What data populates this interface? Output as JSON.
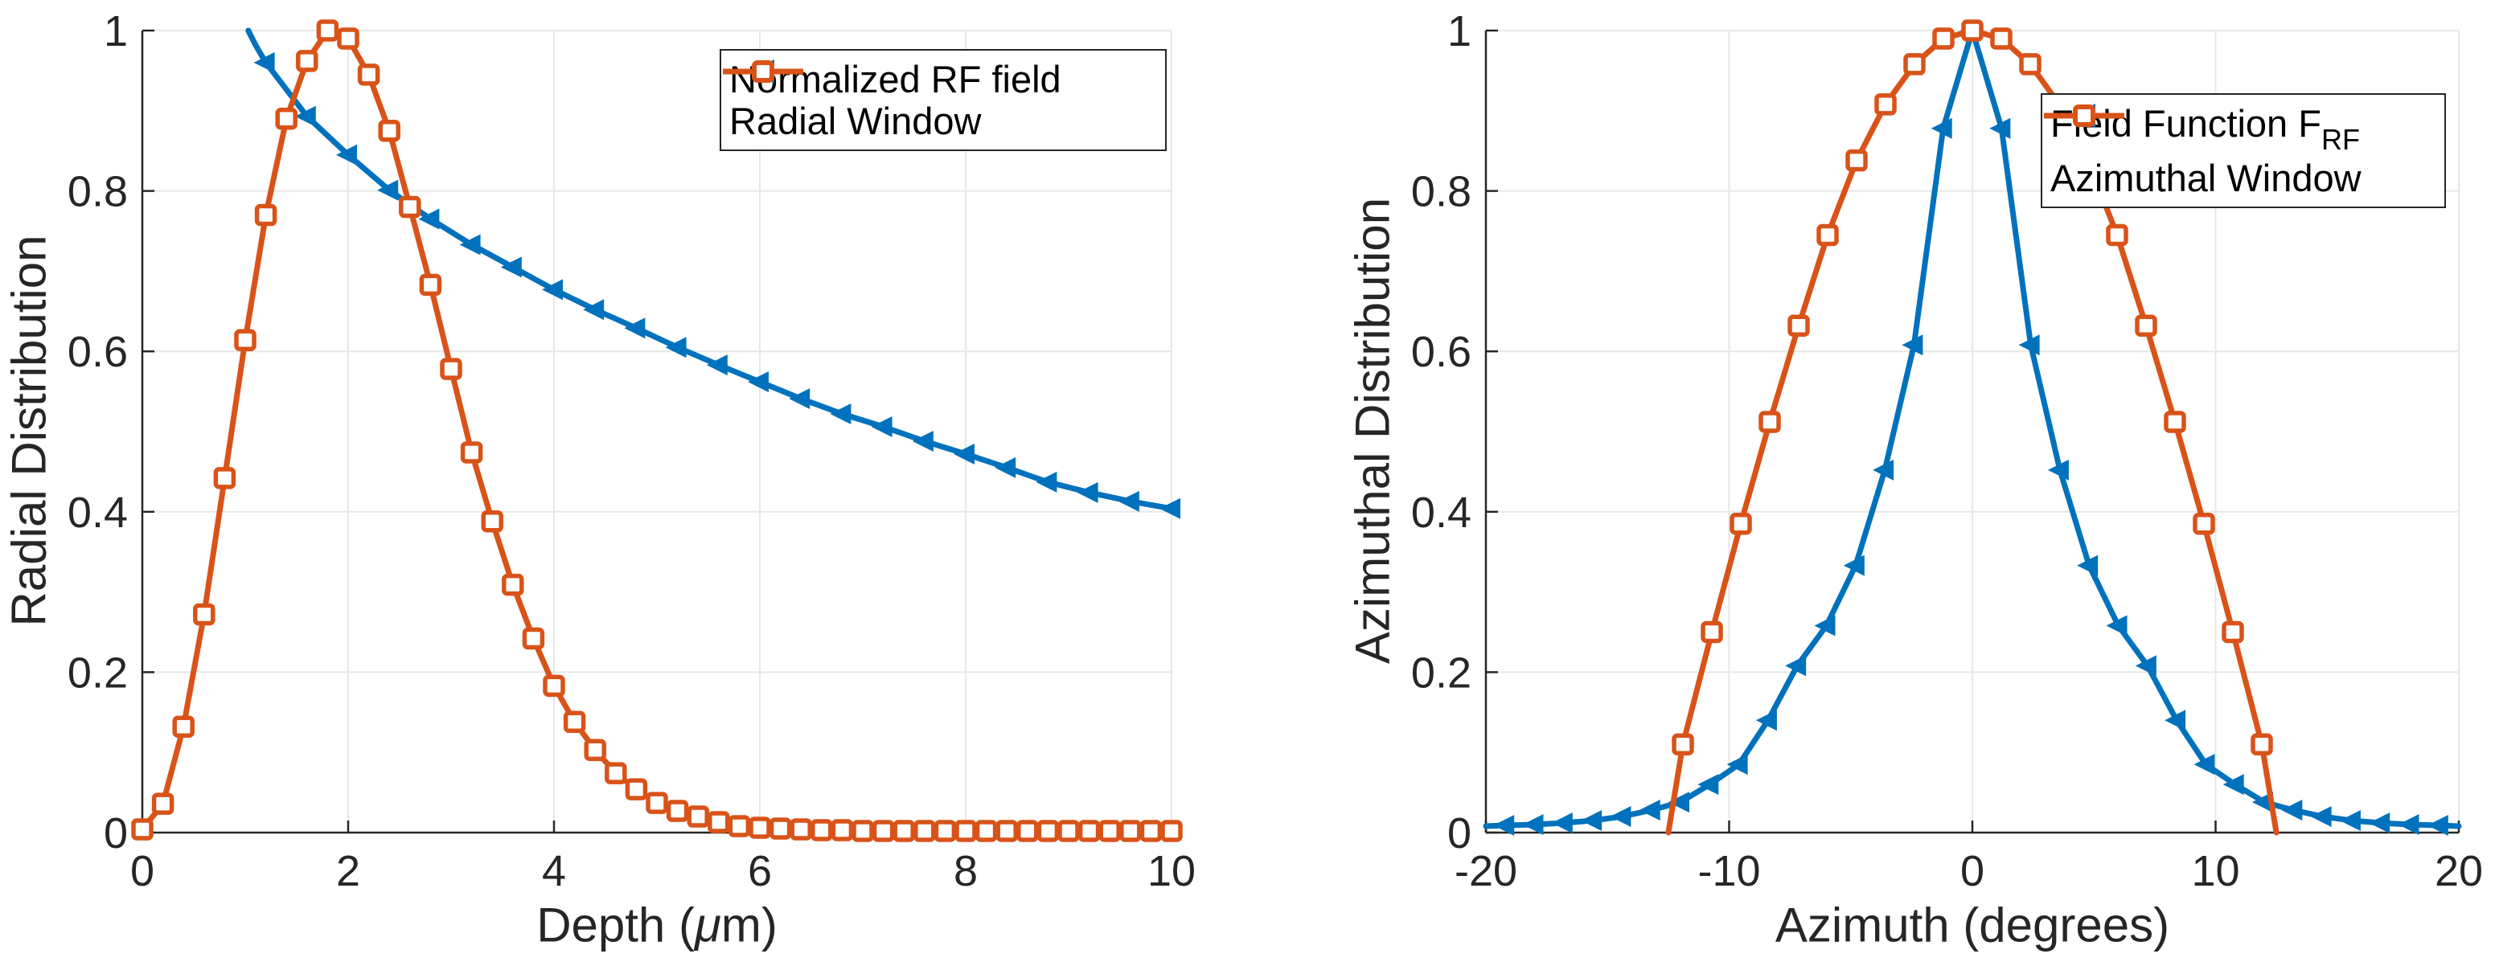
{
  "figure": {
    "background": "#ffffff",
    "axis_color": "#262626",
    "grid_color": "#e7e7e7",
    "series_colors": {
      "blue": "#0072BD",
      "orange": "#D95319"
    }
  },
  "chart_data": [
    {
      "type": "line",
      "title": "",
      "xlabel": "Depth (μm)",
      "xlabel_parts": {
        "pre": "Depth (",
        "mu": "μ",
        "post": "m)"
      },
      "ylabel": "Radial Distribution",
      "xlim": [
        0,
        10
      ],
      "ylim": [
        0,
        1
      ],
      "xticks": [
        0,
        2,
        4,
        6,
        8,
        10
      ],
      "xtick_labels": [
        "0",
        "2",
        "4",
        "6",
        "8",
        "10"
      ],
      "yticks": [
        0,
        0.2,
        0.4,
        0.6,
        0.8,
        1
      ],
      "ytick_labels": [
        "0",
        "0.2",
        "0.4",
        "0.6",
        "0.8",
        "1"
      ],
      "grid": true,
      "legend_position": "top-right-inside",
      "series": [
        {
          "name": "Normalized RF field",
          "color": "#0072BD",
          "marker": "triangle-left",
          "marker_start": 2,
          "marker_end": 25,
          "points": [
            [
              1.03,
              1.0
            ],
            [
              1.1,
              0.982
            ],
            [
              1.2,
              0.96
            ],
            [
              1.6,
              0.893
            ],
            [
              2.0,
              0.845
            ],
            [
              2.4,
              0.801
            ],
            [
              2.8,
              0.765
            ],
            [
              3.2,
              0.733
            ],
            [
              3.6,
              0.705
            ],
            [
              4.0,
              0.677
            ],
            [
              4.4,
              0.652
            ],
            [
              4.8,
              0.629
            ],
            [
              5.2,
              0.605
            ],
            [
              5.6,
              0.583
            ],
            [
              6.0,
              0.562
            ],
            [
              6.4,
              0.541
            ],
            [
              6.8,
              0.522
            ],
            [
              7.2,
              0.506
            ],
            [
              7.6,
              0.488
            ],
            [
              8.0,
              0.472
            ],
            [
              8.4,
              0.455
            ],
            [
              8.8,
              0.437
            ],
            [
              9.2,
              0.424
            ],
            [
              9.6,
              0.413
            ],
            [
              10.0,
              0.404
            ]
          ]
        },
        {
          "name": "Radial Window",
          "color": "#D95319",
          "marker": "square",
          "marker_start": 0,
          "marker_end": 51,
          "points": [
            [
              0,
              0.004
            ],
            [
              0.2,
              0.036
            ],
            [
              0.4,
              0.132
            ],
            [
              0.6,
              0.272
            ],
            [
              0.8,
              0.442
            ],
            [
              1.0,
              0.614
            ],
            [
              1.2,
              0.77
            ],
            [
              1.4,
              0.89
            ],
            [
              1.6,
              0.962
            ],
            [
              1.8,
              1.0
            ],
            [
              2.0,
              0.99
            ],
            [
              2.2,
              0.945
            ],
            [
              2.4,
              0.875
            ],
            [
              2.6,
              0.78
            ],
            [
              2.8,
              0.683
            ],
            [
              3.0,
              0.578
            ],
            [
              3.2,
              0.474
            ],
            [
              3.4,
              0.388
            ],
            [
              3.6,
              0.309
            ],
            [
              3.8,
              0.242
            ],
            [
              4.0,
              0.183
            ],
            [
              4.2,
              0.138
            ],
            [
              4.4,
              0.103
            ],
            [
              4.6,
              0.074
            ],
            [
              4.8,
              0.054
            ],
            [
              5.0,
              0.037
            ],
            [
              5.2,
              0.027
            ],
            [
              5.4,
              0.02
            ],
            [
              5.6,
              0.013
            ],
            [
              5.8,
              0.008
            ],
            [
              6.0,
              0.006
            ],
            [
              6.2,
              0.005
            ],
            [
              6.4,
              0.004
            ],
            [
              6.6,
              0.003
            ],
            [
              6.8,
              0.003
            ],
            [
              7.0,
              0.002
            ],
            [
              7.2,
              0.002
            ],
            [
              7.4,
              0.002
            ],
            [
              7.6,
              0.002
            ],
            [
              7.8,
              0.002
            ],
            [
              8.0,
              0.002
            ],
            [
              8.2,
              0.002
            ],
            [
              8.4,
              0.002
            ],
            [
              8.6,
              0.002
            ],
            [
              8.8,
              0.002
            ],
            [
              9.0,
              0.002
            ],
            [
              9.2,
              0.002
            ],
            [
              9.4,
              0.002
            ],
            [
              9.6,
              0.002
            ],
            [
              9.8,
              0.002
            ],
            [
              10.0,
              0.002
            ]
          ]
        }
      ]
    },
    {
      "type": "line",
      "title": "",
      "xlabel": "Azimuth (degrees)",
      "ylabel": "Azimuthal Distribution",
      "xlim": [
        -20,
        20
      ],
      "ylim": [
        0,
        1
      ],
      "xticks": [
        -20,
        -10,
        0,
        10,
        20
      ],
      "xtick_labels": [
        "-20",
        "-10",
        "0",
        "10",
        "20"
      ],
      "yticks": [
        0,
        0.2,
        0.4,
        0.6,
        0.8,
        1
      ],
      "ytick_labels": [
        "0",
        "0.2",
        "0.4",
        "0.6",
        "0.8",
        "1"
      ],
      "grid": true,
      "legend_position": "top-right-inside",
      "series": [
        {
          "name": "Field Function F_RF",
          "name_main": "Field Function F",
          "name_sub": "RF",
          "color": "#0072BD",
          "marker": "triangle-left",
          "marker_start": 1,
          "marker_end": 34,
          "points": [
            [
              -20,
              0.008
            ],
            [
              -19.2,
              0.009
            ],
            [
              -18,
              0.01
            ],
            [
              -16.8,
              0.012
            ],
            [
              -15.6,
              0.015
            ],
            [
              -14.4,
              0.02
            ],
            [
              -13.2,
              0.028
            ],
            [
              -12,
              0.038
            ],
            [
              -10.8,
              0.06
            ],
            [
              -9.6,
              0.085
            ],
            [
              -8.4,
              0.14
            ],
            [
              -7.2,
              0.208
            ],
            [
              -6,
              0.258
            ],
            [
              -4.8,
              0.333
            ],
            [
              -3.6,
              0.452
            ],
            [
              -2.4,
              0.608
            ],
            [
              -1.2,
              0.878
            ],
            [
              0,
              1.0
            ],
            [
              1.2,
              0.878
            ],
            [
              2.4,
              0.608
            ],
            [
              3.6,
              0.452
            ],
            [
              4.8,
              0.333
            ],
            [
              6,
              0.258
            ],
            [
              7.2,
              0.208
            ],
            [
              8.4,
              0.14
            ],
            [
              9.6,
              0.085
            ],
            [
              10.8,
              0.06
            ],
            [
              12,
              0.038
            ],
            [
              13.2,
              0.028
            ],
            [
              14.4,
              0.02
            ],
            [
              15.6,
              0.015
            ],
            [
              16.8,
              0.012
            ],
            [
              18,
              0.01
            ],
            [
              19.2,
              0.009
            ],
            [
              20,
              0.008
            ]
          ]
        },
        {
          "name": "Azimuthal Window",
          "color": "#D95319",
          "marker": "square",
          "marker_start": 1,
          "marker_end": 22,
          "points": [
            [
              -12.5,
              0
            ],
            [
              -11.9,
              0.11
            ],
            [
              -10.71,
              0.25
            ],
            [
              -9.52,
              0.385
            ],
            [
              -8.33,
              0.512
            ],
            [
              -7.14,
              0.632
            ],
            [
              -5.95,
              0.745
            ],
            [
              -4.76,
              0.838
            ],
            [
              -3.57,
              0.908
            ],
            [
              -2.38,
              0.958
            ],
            [
              -1.19,
              0.99
            ],
            [
              0,
              1.0
            ],
            [
              1.19,
              0.99
            ],
            [
              2.38,
              0.958
            ],
            [
              3.57,
              0.908
            ],
            [
              4.76,
              0.838
            ],
            [
              5.95,
              0.745
            ],
            [
              7.14,
              0.632
            ],
            [
              8.33,
              0.512
            ],
            [
              9.52,
              0.385
            ],
            [
              10.71,
              0.25
            ],
            [
              11.9,
              0.11
            ],
            [
              12.5,
              0
            ]
          ]
        }
      ]
    }
  ]
}
